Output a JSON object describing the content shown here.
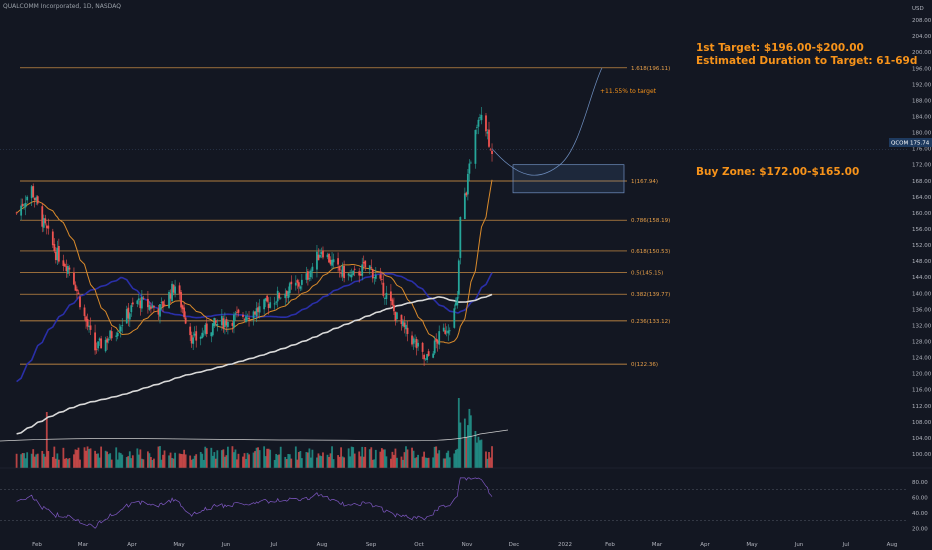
{
  "header": {
    "symbol_line": "QUALCOMM Incorporated, 1D, NASDAQ",
    "currency": "USD"
  },
  "annotations": {
    "target_line1": "1st Target: $196.00-$200.00",
    "target_line2": "Estimated Duration to Target: 61-69d",
    "pct_to_target": "+11.55% to target",
    "buy_zone": "Buy Zone: $172.00-$165.00"
  },
  "price_tag": {
    "label": "QCOM",
    "value": "175.74"
  },
  "colors": {
    "background": "#131722",
    "up": "#26a69a",
    "down": "#ef5350",
    "fib": "#e8a04a",
    "ma_fast": "#2a2fa8",
    "ma_mid": "#d98a2b",
    "ma_slow": "#d9d9d9",
    "rsi": "#7e57c2",
    "annotation": "#f7931a"
  },
  "chart_data": [
    {
      "type": "candlestick",
      "y_axis_ticks": [
        "100.00",
        "104.00",
        "108.00",
        "112.00",
        "116.00",
        "120.00",
        "124.00",
        "128.00",
        "132.00",
        "136.00",
        "140.00",
        "144.00",
        "148.00",
        "152.00",
        "156.00",
        "160.00",
        "164.00",
        "168.00",
        "172.00",
        "176.00",
        "180.00",
        "184.00",
        "188.00",
        "192.00",
        "196.00",
        "200.00",
        "204.00",
        "208.00"
      ],
      "ylim": [
        98,
        210
      ],
      "x_axis_ticks": [
        "Feb",
        "Mar",
        "Apr",
        "May",
        "Jun",
        "Jul",
        "Aug",
        "Sep",
        "Oct",
        "Nov",
        "Dec",
        "2022",
        "Feb",
        "Mar",
        "Apr",
        "May",
        "Jun",
        "Jul",
        "Aug"
      ],
      "fib_levels": [
        {
          "label": "1.618(196.11)",
          "value": 196.11
        },
        {
          "label": "1(167.94)",
          "value": 167.94
        },
        {
          "label": "0.786(158.19)",
          "value": 158.19
        },
        {
          "label": "0.618(150.53)",
          "value": 150.53
        },
        {
          "label": "0.5(145.15)",
          "value": 145.15
        },
        {
          "label": "0.382(139.77)",
          "value": 139.77
        },
        {
          "label": "0.236(133.12)",
          "value": 133.12
        },
        {
          "label": "0(122.36)",
          "value": 122.36
        }
      ],
      "buy_zone_range": [
        165,
        172
      ],
      "current_price": 175.74,
      "price_path": [
        {
          "date": "2021-01-15",
          "close": 160
        },
        {
          "date": "2021-01-25",
          "close": 166
        },
        {
          "date": "2021-02-01",
          "close": 158
        },
        {
          "date": "2021-02-10",
          "close": 150
        },
        {
          "date": "2021-02-20",
          "close": 146
        },
        {
          "date": "2021-03-01",
          "close": 134
        },
        {
          "date": "2021-03-08",
          "close": 126
        },
        {
          "date": "2021-03-20",
          "close": 130
        },
        {
          "date": "2021-04-05",
          "close": 138
        },
        {
          "date": "2021-04-20",
          "close": 136
        },
        {
          "date": "2021-04-30",
          "close": 142
        },
        {
          "date": "2021-05-12",
          "close": 128
        },
        {
          "date": "2021-05-25",
          "close": 132
        },
        {
          "date": "2021-06-10",
          "close": 134
        },
        {
          "date": "2021-06-25",
          "close": 136
        },
        {
          "date": "2021-07-10",
          "close": 140
        },
        {
          "date": "2021-07-25",
          "close": 143
        },
        {
          "date": "2021-08-05",
          "close": 151
        },
        {
          "date": "2021-08-15",
          "close": 146
        },
        {
          "date": "2021-08-25",
          "close": 144
        },
        {
          "date": "2021-09-05",
          "close": 147
        },
        {
          "date": "2021-09-15",
          "close": 141
        },
        {
          "date": "2021-09-25",
          "close": 133
        },
        {
          "date": "2021-10-05",
          "close": 128
        },
        {
          "date": "2021-10-13",
          "close": 123
        },
        {
          "date": "2021-10-22",
          "close": 129
        },
        {
          "date": "2021-10-30",
          "close": 133
        },
        {
          "date": "2021-11-03",
          "close": 138
        },
        {
          "date": "2021-11-05",
          "close": 158
        },
        {
          "date": "2021-11-10",
          "close": 168
        },
        {
          "date": "2021-11-15",
          "close": 182
        },
        {
          "date": "2021-11-19",
          "close": 186
        },
        {
          "date": "2021-11-24",
          "close": 178
        },
        {
          "date": "2021-11-26",
          "close": 175.74
        }
      ],
      "rsi_ticks": [
        "80.00",
        "60.00",
        "40.00",
        "20.00"
      ],
      "rsi_levels": [
        70,
        30
      ]
    }
  ]
}
